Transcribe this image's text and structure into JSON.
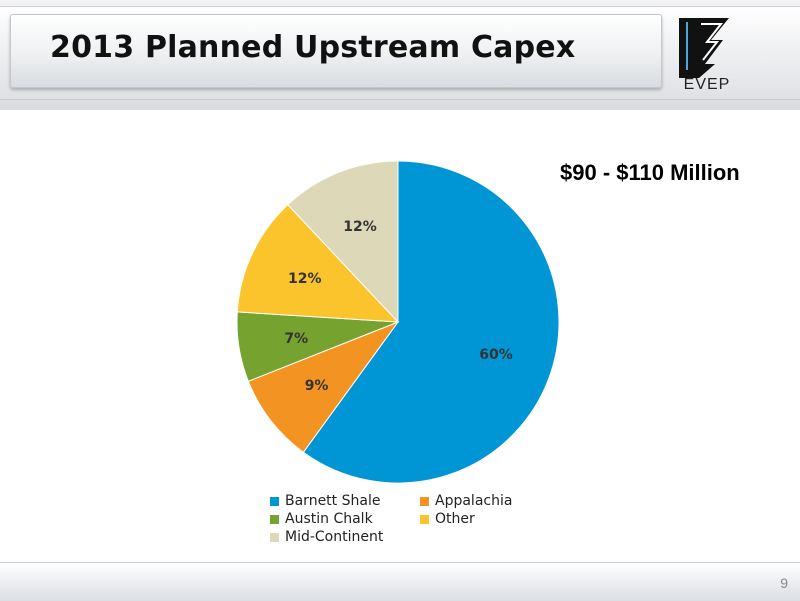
{
  "header": {
    "title": "2013 Planned Upstream Capex"
  },
  "logo": {
    "text": "EVEP"
  },
  "subtitle": "$90 - $110 Million",
  "colors": {
    "barnett": "#0096d6",
    "appalachia": "#f39422",
    "austin": "#76a22f",
    "other": "#fcc42c",
    "midcontinent": "#ddd8b8"
  },
  "chart_data": {
    "type": "pie",
    "slices": [
      {
        "name": "Barnett Shale",
        "value": 60,
        "label": "60%",
        "color": "#0096d6"
      },
      {
        "name": "Appalachia",
        "value": 9,
        "label": "9%",
        "color": "#f39422"
      },
      {
        "name": "Austin Chalk",
        "value": 7,
        "label": "7%",
        "color": "#76a22f"
      },
      {
        "name": "Other",
        "value": 12,
        "label": "12%",
        "color": "#fcc42c"
      },
      {
        "name": "Mid-Continent",
        "value": 12,
        "label": "12%",
        "color": "#ddd8b8"
      }
    ],
    "legend_position": "bottom"
  },
  "footer": {
    "page": "9"
  }
}
